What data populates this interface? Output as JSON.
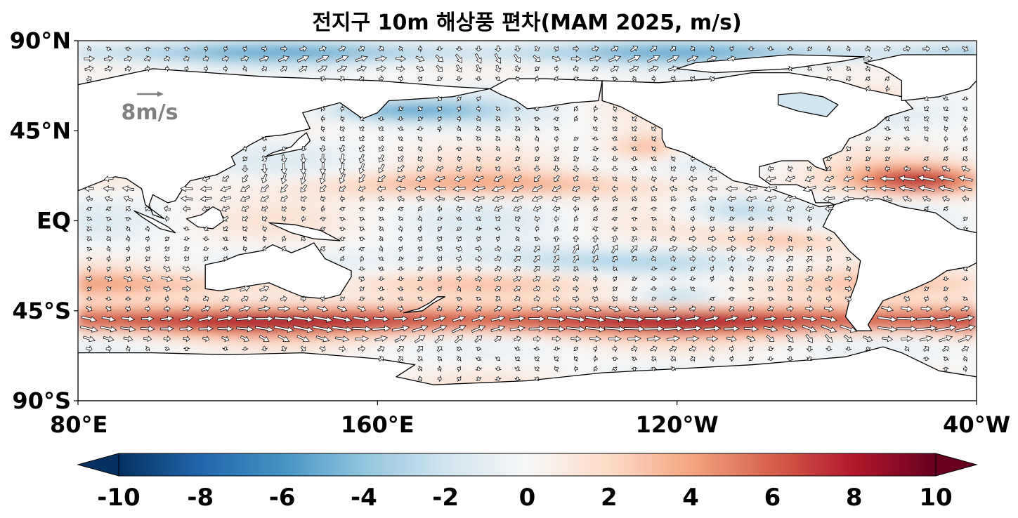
{
  "title": "전지구 10m 해상풍 편차(MAM 2025, m/s)",
  "map": {
    "lat_ticks": [
      "90°N",
      "45°N",
      "EQ",
      "45°S",
      "90°S"
    ],
    "lon_ticks": [
      "80°E",
      "160°E",
      "120°W",
      "40°W"
    ],
    "lon_range_deg_east": [
      80,
      320
    ],
    "lat_range": [
      -90,
      90
    ]
  },
  "reference_vector": {
    "label": "8m/s",
    "speed": 8,
    "color": "#808080"
  },
  "colorbar": {
    "ticks": [
      "-10",
      "-8",
      "-6",
      "-4",
      "-2",
      "0",
      "2",
      "4",
      "6",
      "8",
      "10"
    ],
    "range": [
      -10,
      10
    ],
    "colormap": "RdBu_r",
    "extend": "both",
    "colors": [
      "#053061",
      "#2166ac",
      "#4393c3",
      "#92c5de",
      "#d1e5f0",
      "#f7f7f7",
      "#fddbc7",
      "#f4a582",
      "#d6604d",
      "#b2182b",
      "#67001f"
    ]
  },
  "colors": {
    "land": "#ffffff",
    "coastline": "#000000",
    "arrow_fill": "#ffffff",
    "arrow_edge": "#000000"
  }
}
